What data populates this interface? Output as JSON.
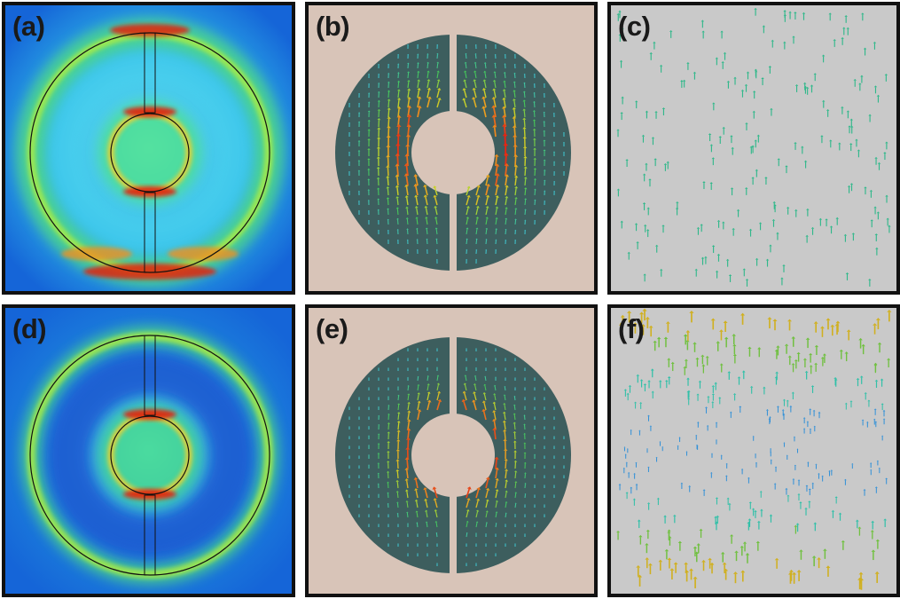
{
  "panels": [
    {
      "id": "a",
      "label": "(a)",
      "kind": "field-map",
      "mode": "top"
    },
    {
      "id": "b",
      "label": "(b)",
      "kind": "current-vectors",
      "mode": "top"
    },
    {
      "id": "c",
      "label": "(c)",
      "kind": "arrow-scatter",
      "mode": "uniform"
    },
    {
      "id": "d",
      "label": "(d)",
      "kind": "field-map",
      "mode": "bottom"
    },
    {
      "id": "e",
      "label": "(e)",
      "kind": "current-vectors",
      "mode": "bottom"
    },
    {
      "id": "f",
      "label": "(f)",
      "kind": "arrow-scatter",
      "mode": "gradient"
    }
  ],
  "colors": {
    "border": "#111111",
    "field_background": "#1565d8",
    "vector_background": "#d8c4b8",
    "resonator": "#3d5e5e",
    "scatter_background": "#c9c9c9",
    "arrow_uniform": "#2fb88a",
    "hot": "#e02010",
    "warm": "#f0a020",
    "mid": "#30d0c0"
  }
}
